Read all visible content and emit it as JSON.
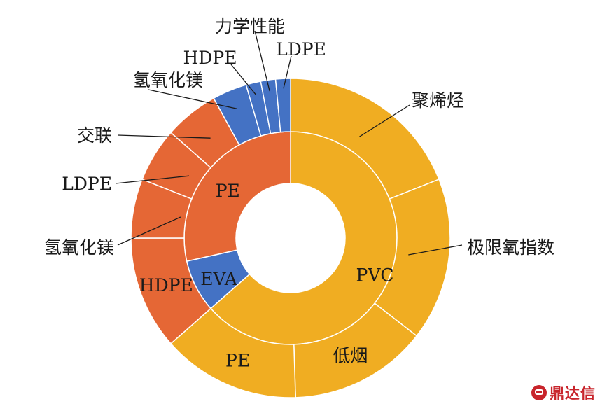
{
  "chart_data": {
    "type": "sunburst",
    "colors": {
      "PVC": "#F0AD22",
      "PE": "#E56735",
      "EVA": "#4472C4"
    },
    "inner": [
      {
        "label": "PVC",
        "value": 63.5
      },
      {
        "label": "EVA",
        "value": 8.0
      },
      {
        "label": "PE",
        "value": 28.5
      }
    ],
    "outer": [
      {
        "parent": "PVC",
        "label": "聚烯烃",
        "value": 19.0
      },
      {
        "parent": "PVC",
        "label": "极限氧指数",
        "value": 16.5
      },
      {
        "parent": "PVC",
        "label": "低烟",
        "value": 14.0
      },
      {
        "parent": "PVC",
        "label": "PE",
        "value": 14.0
      },
      {
        "parent": "PE",
        "label": "HDPE",
        "value": 11.5
      },
      {
        "parent": "PE",
        "label": "氢氧化镁",
        "value": 6.0
      },
      {
        "parent": "PE",
        "label": "LDPE",
        "value": 5.5
      },
      {
        "parent": "PE",
        "label": "交联",
        "value": 5.5
      },
      {
        "parent": "EVA",
        "label": "氢氧化镁",
        "value": 3.5
      },
      {
        "parent": "EVA",
        "label": "HDPE",
        "value": 1.5
      },
      {
        "parent": "EVA",
        "label": "力学性能",
        "value": 1.5
      },
      {
        "parent": "EVA",
        "label": "LDPE",
        "value": 1.5
      }
    ]
  },
  "watermark": {
    "text": "鼎达信",
    "icon": "logo-icon"
  }
}
